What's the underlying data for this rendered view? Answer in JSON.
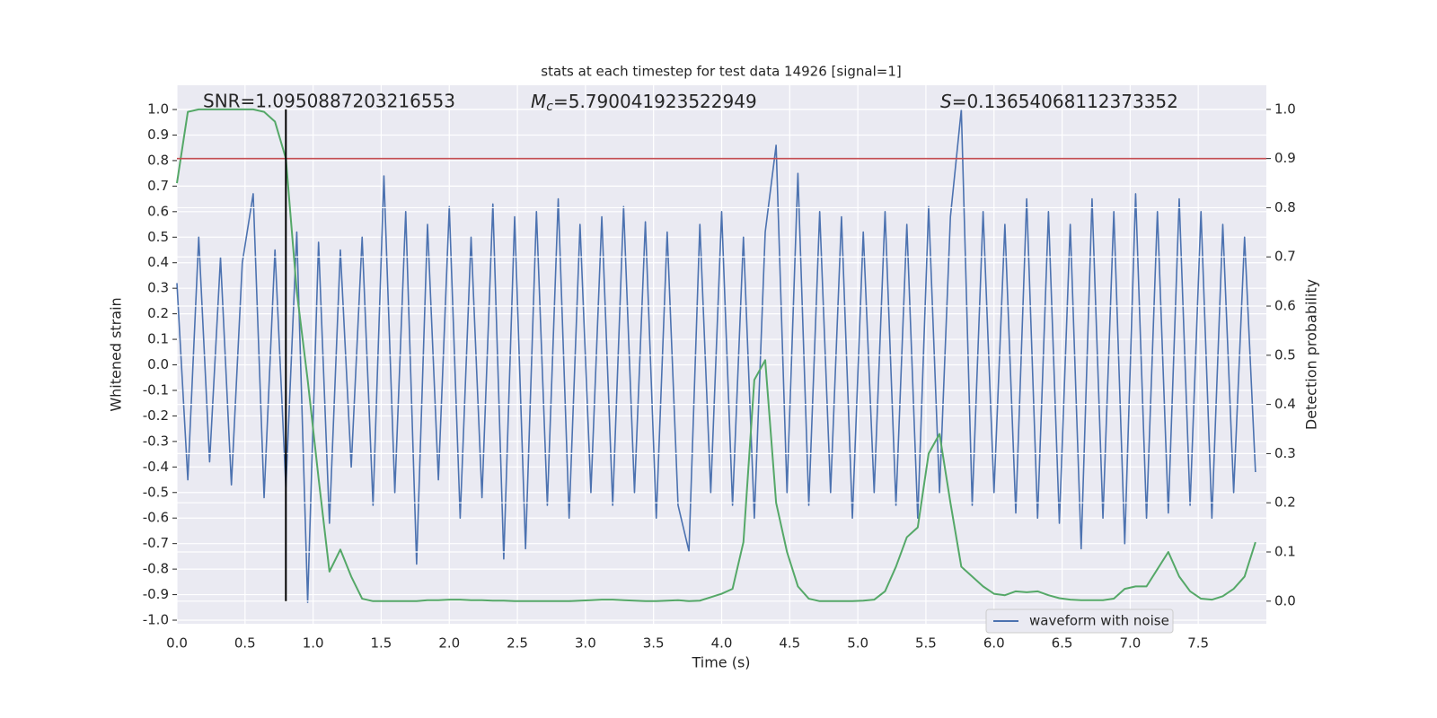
{
  "chart_data": {
    "type": "line",
    "title": "stats at each timestep for test data 14926 [signal=1]",
    "xlabel": "Time (s)",
    "ylabel": "Whitened strain",
    "y2label": "Detection probability",
    "annotations": {
      "snr": "SNR=1.0950887203216553",
      "mc": {
        "symbol": "M",
        "subscript": "c",
        "text": "=5.790041923522949"
      },
      "s": {
        "symbol": "S",
        "text": "=0.13654068112373352"
      }
    },
    "threshold": {
      "value": 0.9,
      "axis": "y2",
      "color": "#c44e52"
    },
    "marker": {
      "x": 0.8,
      "color": "#000000"
    },
    "x": [
      0,
      0.08,
      0.16,
      0.24,
      0.32,
      0.4,
      0.48,
      0.56,
      0.64,
      0.72,
      0.8,
      0.88,
      0.96,
      1.04,
      1.12,
      1.2,
      1.28,
      1.36,
      1.44,
      1.52,
      1.6,
      1.68,
      1.76,
      1.84,
      1.92,
      2,
      2.08,
      2.16,
      2.24,
      2.32,
      2.4,
      2.48,
      2.56,
      2.64,
      2.72,
      2.8,
      2.88,
      2.96,
      3.04,
      3.12,
      3.2,
      3.28,
      3.36,
      3.44,
      3.52,
      3.6,
      3.68,
      3.76,
      3.84,
      3.92,
      4,
      4.08,
      4.16,
      4.24,
      4.32,
      4.4,
      4.48,
      4.56,
      4.64,
      4.72,
      4.8,
      4.88,
      4.96,
      5.04,
      5.12,
      5.2,
      5.28,
      5.36,
      5.44,
      5.52,
      5.6,
      5.68,
      5.76,
      5.84,
      5.92,
      6,
      6.08,
      6.16,
      6.24,
      6.32,
      6.4,
      6.48,
      6.56,
      6.64,
      6.72,
      6.8,
      6.88,
      6.96,
      7.04,
      7.12,
      7.2,
      7.28,
      7.36,
      7.44,
      7.52,
      7.6,
      7.68,
      7.76,
      7.84,
      7.92
    ],
    "series": [
      {
        "name": "waveform with noise",
        "color": "#4c72b0",
        "axis": "y",
        "values": [
          0.32,
          -0.45,
          0.5,
          -0.38,
          0.42,
          -0.47,
          0.4,
          0.67,
          -0.52,
          0.45,
          -0.48,
          0.52,
          -0.93,
          0.48,
          -0.62,
          0.45,
          -0.4,
          0.5,
          -0.55,
          0.74,
          -0.5,
          0.6,
          -0.78,
          0.55,
          -0.45,
          0.62,
          -0.6,
          0.5,
          -0.52,
          0.63,
          -0.76,
          0.58,
          -0.72,
          0.6,
          -0.55,
          0.65,
          -0.6,
          0.55,
          -0.5,
          0.58,
          -0.55,
          0.62,
          -0.5,
          0.56,
          -0.6,
          0.52,
          -0.55,
          -0.73,
          0.55,
          -0.5,
          0.6,
          -0.55,
          0.5,
          -0.6,
          0.52,
          0.86,
          -0.5,
          0.75,
          -0.55,
          0.6,
          -0.5,
          0.58,
          -0.6,
          0.52,
          -0.5,
          0.6,
          -0.55,
          0.55,
          -0.6,
          0.62,
          -0.5,
          0.58,
          1.0,
          -0.55,
          0.6,
          -0.5,
          0.55,
          -0.58,
          0.65,
          -0.6,
          0.6,
          -0.62,
          0.55,
          -0.72,
          0.65,
          -0.6,
          0.6,
          -0.7,
          0.67,
          -0.6,
          0.6,
          -0.58,
          0.65,
          -0.55,
          0.6,
          -0.6,
          0.55,
          -0.5,
          0.5,
          -0.42
        ]
      },
      {
        "color": "#55a868",
        "axis": "y2",
        "values": [
          0.85,
          0.995,
          1.0,
          1.0,
          1.0,
          1.0,
          1.0,
          1.0,
          0.995,
          0.975,
          0.9,
          0.63,
          0.45,
          0.25,
          0.06,
          0.105,
          0.05,
          0.005,
          0.0,
          0.0,
          0,
          0,
          0,
          0.002,
          0.002,
          0.003,
          0.003,
          0.002,
          0.002,
          0.001,
          0.001,
          0,
          0,
          0,
          0,
          0,
          0,
          0.001,
          0.002,
          0.003,
          0.003,
          0.002,
          0.001,
          0,
          0,
          0.001,
          0.002,
          0,
          0.001,
          0.008,
          0.015,
          0.025,
          0.12,
          0.45,
          0.49,
          0.2,
          0.1,
          0.03,
          0.005,
          0.0,
          0,
          0,
          0,
          0.001,
          0.003,
          0.02,
          0.07,
          0.13,
          0.15,
          0.3,
          0.34,
          0.2,
          0.07,
          0.05,
          0.03,
          0.015,
          0.012,
          0.02,
          0.018,
          0.02,
          0.012,
          0.006,
          0.003,
          0.002,
          0.002,
          0.002,
          0.005,
          0.025,
          0.03,
          0.03,
          0.065,
          0.1,
          0.05,
          0.02,
          0.005,
          0.003,
          0.01,
          0.025,
          0.05,
          0.12
        ]
      }
    ],
    "legend": "lower right",
    "grid": true,
    "xlim": [
      0,
      8
    ],
    "xticks": [
      {
        "value": 0,
        "label": "0.0"
      },
      0.5,
      {
        "value": 1,
        "label": "1.0"
      },
      1.5,
      {
        "value": 2,
        "label": "2.0"
      },
      2.5,
      {
        "value": 3,
        "label": "3.0"
      },
      3.5,
      {
        "value": 4,
        "label": "4.0"
      },
      4.5,
      {
        "value": 5,
        "label": "5.0"
      },
      5.5,
      {
        "value": 6,
        "label": "6.0"
      },
      6.5,
      {
        "value": 7,
        "label": "7.0"
      },
      7.5
    ],
    "ylim": [
      -1.014,
      1.095
    ],
    "yticks": [
      {
        "value": -1,
        "label": "-1.0"
      },
      -0.9,
      -0.8,
      -0.7,
      -0.6,
      -0.5,
      -0.4,
      -0.3,
      -0.2,
      -0.1,
      {
        "value": 0,
        "label": "0.0"
      },
      0.1,
      0.2,
      0.3,
      0.4,
      0.5,
      0.6,
      0.7,
      0.8,
      0.9,
      {
        "value": 1,
        "label": "1.0"
      }
    ],
    "y2lim": [
      -0.046,
      1.049
    ],
    "y2ticks": [
      {
        "value": 0,
        "label": "0.0"
      },
      0.1,
      0.2,
      0.3,
      0.4,
      0.5,
      0.6,
      0.7,
      0.8,
      0.9,
      {
        "value": 1,
        "label": "1.0"
      }
    ]
  }
}
